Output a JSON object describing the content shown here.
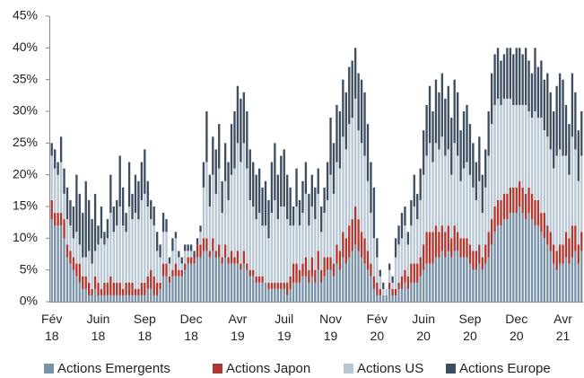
{
  "chart_data": {
    "type": "stacked_bar",
    "categories": [
      "Fév 18",
      null,
      null,
      null,
      null,
      null,
      null,
      null,
      null,
      null,
      null,
      null,
      null,
      null,
      null,
      "Juin 18",
      null,
      null,
      null,
      null,
      null,
      null,
      null,
      null,
      null,
      null,
      null,
      null,
      null,
      null,
      "Sep 18",
      null,
      null,
      null,
      null,
      null,
      null,
      null,
      null,
      null,
      null,
      null,
      null,
      null,
      null,
      "Dec 18",
      null,
      null,
      null,
      null,
      null,
      null,
      null,
      null,
      null,
      null,
      null,
      null,
      null,
      null,
      "Avr 19",
      null,
      null,
      null,
      null,
      null,
      null,
      null,
      null,
      null,
      null,
      null,
      null,
      null,
      null,
      "Juil 19",
      null,
      null,
      null,
      null,
      null,
      null,
      null,
      null,
      null,
      null,
      null,
      null,
      null,
      null,
      "Nov 19",
      null,
      null,
      null,
      null,
      null,
      null,
      null,
      null,
      null,
      null,
      null,
      null,
      null,
      null,
      "Fév 20",
      null,
      null,
      null,
      null,
      null,
      null,
      null,
      null,
      null,
      null,
      null,
      null,
      null,
      null,
      "Juin 20",
      null,
      null,
      null,
      null,
      null,
      null,
      null,
      null,
      null,
      null,
      null,
      null,
      null,
      null,
      "Sep 20",
      null,
      null,
      null,
      null,
      null,
      null,
      null,
      null,
      null,
      null,
      null,
      null,
      null,
      null,
      "Dec 20",
      null,
      null,
      null,
      null,
      null,
      null,
      null,
      null,
      null,
      null,
      null,
      null,
      null,
      null,
      "Avr 21",
      null,
      null,
      null,
      null,
      null,
      null
    ],
    "series": [
      {
        "name": "Actions Emergents",
        "color": "#7892aa",
        "values": [
          13,
          12,
          12,
          12,
          10,
          7,
          6,
          5,
          4,
          3,
          2,
          2,
          1,
          1,
          2,
          1,
          1,
          1,
          1,
          1,
          1,
          1,
          1,
          1,
          1,
          1,
          1,
          1,
          1,
          1,
          1,
          2,
          2,
          1,
          1,
          2,
          4,
          4,
          3,
          4,
          4,
          4,
          4,
          5,
          6,
          6,
          6,
          7,
          7,
          8,
          8,
          7,
          8,
          7,
          7,
          6,
          7,
          6,
          6,
          6,
          6,
          5,
          6,
          5,
          4,
          4,
          3,
          3,
          3,
          3,
          2,
          2,
          2,
          2,
          2,
          2,
          1,
          2,
          3,
          3,
          3,
          4,
          4,
          3,
          4,
          3,
          5,
          3,
          4,
          5,
          5,
          4,
          6,
          5,
          7,
          6,
          7,
          8,
          9,
          8,
          7,
          6,
          5,
          4,
          2,
          1,
          1,
          1,
          1,
          2,
          1,
          1,
          2,
          2,
          3,
          2,
          3,
          3,
          3,
          4,
          5,
          6,
          6,
          6,
          7,
          7,
          8,
          7,
          8,
          7,
          8,
          8,
          7,
          7,
          7,
          6,
          5,
          5,
          6,
          5,
          6,
          7,
          9,
          11,
          12,
          12,
          13,
          13,
          14,
          14,
          14,
          15,
          14,
          13,
          14,
          13,
          12,
          12,
          11,
          10,
          9,
          8,
          6,
          5,
          6,
          6,
          7,
          6,
          7,
          8,
          6,
          8
        ]
      },
      {
        "name": "Actions Japon",
        "color": "#b0362f",
        "values": [
          3,
          2,
          2,
          2,
          3,
          2,
          2,
          2,
          2,
          3,
          2,
          2,
          2,
          1,
          2,
          2,
          1,
          2,
          2,
          3,
          2,
          2,
          2,
          1,
          2,
          2,
          2,
          1,
          1,
          2,
          2,
          2,
          3,
          3,
          2,
          1,
          2,
          2,
          1,
          1,
          2,
          1,
          1,
          1,
          1,
          1,
          1,
          2,
          2,
          2,
          2,
          1,
          2,
          1,
          2,
          1,
          2,
          1,
          2,
          1,
          2,
          1,
          2,
          1,
          1,
          1,
          1,
          1,
          1,
          0,
          1,
          1,
          1,
          1,
          1,
          1,
          2,
          2,
          3,
          3,
          2,
          2,
          3,
          2,
          3,
          2,
          3,
          2,
          3,
          2,
          2,
          2,
          3,
          3,
          4,
          4,
          5,
          5,
          6,
          5,
          4,
          4,
          3,
          2,
          2,
          2,
          1,
          0,
          0,
          1,
          1,
          1,
          1,
          2,
          2,
          2,
          3,
          3,
          3,
          3,
          4,
          5,
          5,
          5,
          5,
          4,
          4,
          4,
          4,
          3,
          4,
          3,
          3,
          3,
          3,
          3,
          3,
          3,
          3,
          2,
          3,
          4,
          4,
          4,
          4,
          4,
          4,
          4,
          4,
          4,
          4,
          4,
          4,
          4,
          4,
          4,
          4,
          4,
          3,
          4,
          3,
          3,
          3,
          3,
          3,
          3,
          4,
          4,
          5,
          4,
          3,
          3
        ]
      },
      {
        "name": "Actions US",
        "color": "#b9c7d5",
        "values": [
          7,
          7,
          6,
          8,
          4,
          4,
          4,
          3,
          5,
          3,
          3,
          3,
          5,
          4,
          4,
          6,
          8,
          6,
          7,
          10,
          8,
          9,
          12,
          10,
          8,
          12,
          10,
          12,
          11,
          13,
          14,
          11,
          8,
          8,
          5,
          4,
          5,
          5,
          2,
          3,
          4,
          2,
          1,
          2,
          1,
          1,
          0,
          0,
          2,
          8,
          12,
          7,
          10,
          9,
          12,
          7,
          10,
          9,
          12,
          14,
          17,
          16,
          17,
          15,
          11,
          10,
          9,
          10,
          8,
          9,
          7,
          11,
          13,
          10,
          12,
          12,
          10,
          8,
          6,
          9,
          7,
          8,
          10,
          7,
          8,
          8,
          9,
          6,
          7,
          9,
          13,
          11,
          13,
          13,
          15,
          14,
          16,
          16,
          17,
          14,
          14,
          13,
          11,
          8,
          6,
          4,
          2,
          1,
          1,
          2,
          1,
          5,
          6,
          6,
          7,
          5,
          6,
          9,
          7,
          9,
          11,
          12,
          14,
          11,
          13,
          13,
          14,
          12,
          12,
          10,
          13,
          12,
          9,
          11,
          12,
          11,
          10,
          8,
          10,
          7,
          9,
          12,
          15,
          16,
          16,
          15,
          15,
          15,
          14,
          13,
          13,
          12,
          13,
          14,
          12,
          12,
          14,
          13,
          15,
          13,
          14,
          13,
          12,
          15,
          15,
          14,
          12,
          10,
          14,
          12,
          10,
          12
        ]
      },
      {
        "name": "Actions Europe",
        "color": "#3d4e61",
        "values": [
          2,
          3,
          2,
          4,
          4,
          5,
          4,
          5,
          9,
          8,
          7,
          12,
          8,
          7,
          9,
          3,
          5,
          2,
          3,
          6,
          4,
          4,
          8,
          6,
          3,
          7,
          4,
          6,
          6,
          6,
          7,
          4,
          3,
          3,
          3,
          2,
          3,
          2,
          1,
          2,
          1,
          1,
          1,
          1,
          1,
          1,
          1,
          1,
          1,
          4,
          8,
          5,
          6,
          7,
          7,
          5,
          6,
          6,
          8,
          9,
          9,
          10,
          8,
          9,
          8,
          7,
          7,
          7,
          6,
          7,
          6,
          8,
          9,
          7,
          8,
          9,
          7,
          6,
          3,
          6,
          4,
          5,
          5,
          5,
          5,
          5,
          4,
          4,
          4,
          6,
          9,
          8,
          9,
          9,
          9,
          9,
          9,
          9,
          8,
          9,
          10,
          10,
          9,
          8,
          8,
          3,
          1,
          1,
          0,
          1,
          1,
          3,
          3,
          4,
          3,
          2,
          4,
          5,
          4,
          5,
          7,
          8,
          9,
          8,
          10,
          9,
          10,
          9,
          10,
          9,
          10,
          10,
          8,
          9,
          9,
          8,
          7,
          6,
          7,
          6,
          6,
          7,
          8,
          8,
          8,
          7,
          7,
          8,
          8,
          8,
          9,
          9,
          8,
          9,
          8,
          7,
          10,
          8,
          9,
          8,
          10,
          9,
          9,
          11,
          12,
          12,
          8,
          8,
          10,
          9,
          8,
          7
        ]
      }
    ],
    "ylim": [
      0,
      45
    ],
    "yticks": [
      {
        "value": 0,
        "label": "0%"
      },
      {
        "value": 5,
        "label": "5%"
      },
      {
        "value": 10,
        "label": "10%"
      },
      {
        "value": 15,
        "label": "15%"
      },
      {
        "value": 20,
        "label": "20%"
      },
      {
        "value": 25,
        "label": "25%"
      },
      {
        "value": 30,
        "label": "30%"
      },
      {
        "value": 35,
        "label": "35%"
      },
      {
        "value": 40,
        "label": "40%"
      },
      {
        "value": 45,
        "label": "45%"
      }
    ],
    "grid": false,
    "legend": "bottom"
  }
}
